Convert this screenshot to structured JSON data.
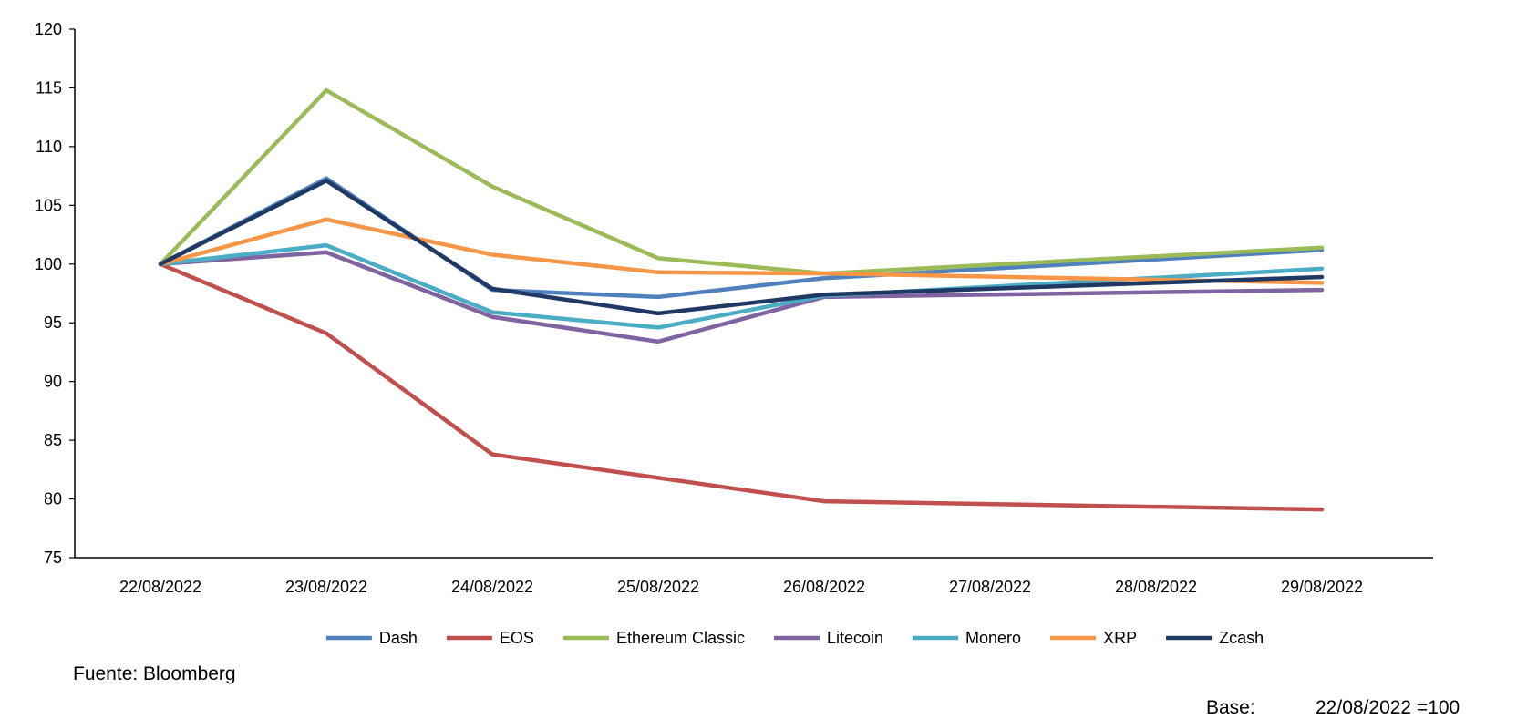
{
  "chart_data": {
    "type": "line",
    "title": "",
    "xlabel": "",
    "ylabel": "",
    "categories": [
      "22/08/2022",
      "23/08/2022",
      "24/08/2022",
      "25/08/2022",
      "26/08/2022",
      "27/08/2022",
      "28/08/2022",
      "29/08/2022"
    ],
    "ylim": [
      75,
      120
    ],
    "yticks": [
      "75",
      "80",
      "85",
      "90",
      "95",
      "100",
      "105",
      "110",
      "115",
      "120"
    ],
    "grid": false,
    "legend_position": "bottom",
    "series": [
      {
        "name": "Dash",
        "color": "#4F81BD",
        "values": [
          100,
          107.3,
          97.8,
          97.2,
          98.8,
          null,
          null,
          101.2
        ]
      },
      {
        "name": "EOS",
        "color": "#C0504D",
        "values": [
          100,
          94.1,
          83.8,
          81.8,
          79.8,
          null,
          null,
          79.1
        ]
      },
      {
        "name": "Ethereum Classic",
        "color": "#9BBB59",
        "values": [
          100,
          114.8,
          106.6,
          100.5,
          99.2,
          null,
          null,
          101.4
        ]
      },
      {
        "name": "Litecoin",
        "color": "#8064A2",
        "values": [
          100,
          101.0,
          95.5,
          93.4,
          97.2,
          null,
          null,
          97.8
        ]
      },
      {
        "name": "Monero",
        "color": "#4BACC6",
        "values": [
          100,
          101.6,
          95.9,
          94.6,
          97.3,
          null,
          null,
          99.6
        ]
      },
      {
        "name": "XRP",
        "color": "#F79646",
        "values": [
          100,
          103.8,
          100.8,
          99.3,
          99.2,
          null,
          null,
          98.4
        ]
      },
      {
        "name": "Zcash",
        "color": "#1F3864",
        "values": [
          100,
          107.1,
          97.9,
          95.8,
          97.4,
          null,
          null,
          98.9
        ]
      }
    ]
  },
  "footnotes": {
    "source": "Fuente: Bloomberg",
    "base_label": "Base:",
    "base_value": "22/08/2022 =100"
  }
}
